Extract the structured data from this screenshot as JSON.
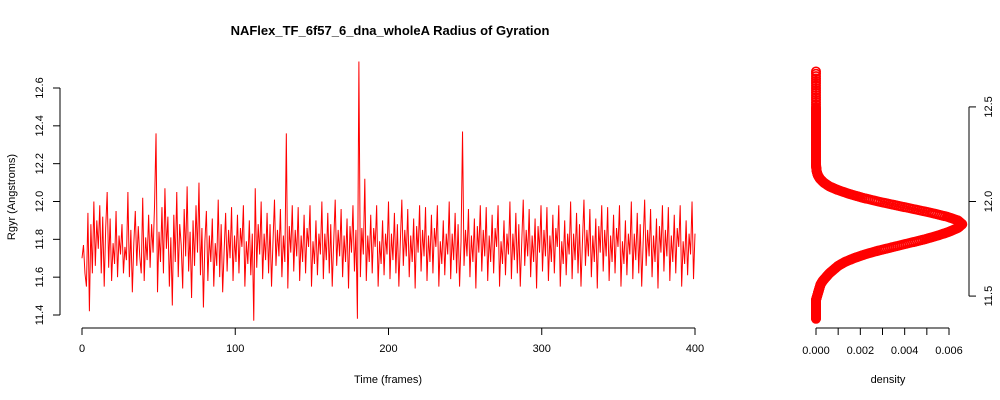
{
  "chart_data": [
    {
      "type": "line",
      "title": "NAFlex_TF_6f57_6_dna_wholeA Radius of Gyration",
      "xlabel": "Time (frames)",
      "ylabel": "Rgyr (Angstroms)",
      "xlim": [
        0,
        400
      ],
      "ylim": [
        11.4,
        12.6
      ],
      "x_ticks": [
        0,
        100,
        200,
        300,
        400
      ],
      "y_ticks": [
        11.4,
        11.6,
        11.8,
        12.0,
        12.2,
        12.4,
        12.6
      ],
      "color": "#ff0000",
      "series": [
        {
          "values": [
            11.7,
            11.77,
            11.62,
            11.55,
            11.94,
            11.42,
            11.88,
            11.62,
            12.0,
            11.66,
            11.9,
            11.75,
            11.98,
            11.62,
            11.92,
            11.55,
            11.86,
            12.05,
            11.65,
            11.91,
            11.58,
            11.78,
            11.67,
            11.95,
            11.6,
            11.82,
            11.72,
            11.88,
            11.62,
            11.76,
            11.69,
            12.05,
            11.6,
            11.85,
            11.52,
            11.78,
            11.95,
            11.66,
            11.87,
            11.71,
            11.62,
            12.02,
            11.58,
            11.81,
            11.69,
            11.93,
            11.65,
            11.88,
            11.73,
            11.98,
            12.36,
            11.52,
            11.84,
            11.68,
            11.97,
            11.62,
            12.07,
            11.75,
            11.92,
            11.55,
            11.81,
            11.45,
            11.93,
            11.68,
            12.05,
            11.6,
            11.88,
            11.77,
            11.54,
            11.96,
            11.71,
            12.08,
            11.63,
            11.84,
            11.49,
            11.9,
            11.66,
            11.98,
            11.73,
            12.1,
            11.61,
            11.86,
            11.44,
            11.79,
            11.95,
            11.58,
            11.82,
            11.68,
            11.91,
            11.55,
            11.78,
            11.66,
            12.01,
            11.6,
            11.88,
            11.52,
            11.74,
            11.94,
            11.63,
            11.85,
            11.7,
            11.97,
            11.58,
            11.82,
            11.68,
            11.93,
            11.62,
            11.86,
            11.76,
            11.98,
            11.55,
            11.79,
            11.67,
            11.9,
            11.61,
            11.83,
            11.37,
            12.07,
            11.65,
            11.88,
            11.72,
            12.0,
            11.59,
            11.83,
            11.69,
            11.94,
            11.62,
            11.88,
            11.55,
            11.79,
            12.01,
            11.66,
            11.85,
            11.71,
            11.96,
            11.6,
            11.82,
            11.68,
            12.36,
            11.54,
            11.87,
            11.73,
            11.98,
            11.63,
            11.85,
            11.71,
            11.97,
            11.58,
            11.82,
            11.68,
            11.93,
            11.62,
            11.86,
            11.76,
            11.98,
            11.55,
            11.79,
            11.67,
            11.9,
            11.61,
            11.83,
            11.72,
            12.0,
            11.59,
            11.83,
            11.69,
            11.94,
            11.62,
            11.88,
            11.55,
            11.79,
            12.01,
            11.66,
            11.85,
            11.71,
            11.96,
            11.6,
            11.82,
            11.68,
            11.91,
            11.54,
            11.87,
            11.73,
            11.98,
            11.63,
            11.85,
            11.38,
            12.74,
            11.6,
            11.86,
            11.72,
            12.12,
            11.58,
            11.82,
            11.68,
            11.93,
            11.62,
            11.86,
            11.76,
            11.98,
            11.55,
            11.79,
            11.67,
            11.9,
            11.61,
            11.83,
            11.72,
            12.0,
            11.59,
            11.83,
            11.69,
            11.94,
            11.62,
            11.88,
            11.55,
            11.79,
            12.01,
            11.66,
            11.85,
            11.71,
            11.96,
            11.6,
            11.82,
            11.68,
            11.91,
            11.54,
            11.87,
            11.73,
            11.98,
            11.63,
            11.85,
            11.71,
            11.97,
            11.58,
            11.82,
            11.68,
            11.93,
            11.62,
            11.86,
            11.76,
            11.98,
            11.55,
            11.79,
            11.67,
            11.9,
            11.61,
            11.83,
            11.72,
            12.0,
            11.59,
            11.83,
            11.69,
            11.94,
            11.62,
            11.88,
            11.55,
            11.79,
            12.37,
            11.66,
            11.85,
            11.71,
            11.96,
            11.6,
            11.82,
            11.68,
            11.91,
            11.54,
            11.87,
            11.73,
            11.98,
            11.63,
            11.85,
            11.71,
            11.97,
            11.58,
            11.82,
            11.68,
            11.93,
            11.62,
            11.86,
            11.76,
            11.98,
            11.55,
            11.79,
            11.67,
            11.9,
            11.61,
            11.83,
            11.72,
            12.0,
            11.59,
            11.83,
            11.69,
            11.94,
            11.62,
            11.88,
            11.55,
            11.79,
            12.01,
            11.66,
            11.85,
            11.71,
            11.96,
            11.6,
            11.82,
            11.68,
            11.91,
            11.54,
            11.87,
            11.73,
            11.98,
            11.63,
            11.85,
            11.71,
            11.97,
            11.58,
            11.82,
            11.68,
            11.93,
            11.62,
            11.86,
            11.76,
            11.98,
            11.55,
            11.79,
            11.67,
            11.9,
            11.61,
            11.83,
            11.72,
            12.0,
            11.59,
            11.83,
            11.69,
            11.94,
            11.62,
            11.88,
            11.55,
            11.79,
            12.01,
            11.66,
            11.85,
            11.71,
            11.96,
            11.6,
            11.82,
            11.68,
            11.91,
            11.54,
            11.87,
            11.73,
            11.98,
            11.63,
            11.85,
            11.71,
            11.97,
            11.58,
            11.82,
            11.68,
            11.93,
            11.62,
            11.86,
            11.76,
            11.98,
            11.55,
            11.79,
            11.67,
            11.9,
            11.61,
            11.83,
            11.72,
            12.0,
            11.59,
            11.83,
            11.69,
            11.94,
            11.62,
            11.88,
            11.55,
            11.79,
            12.01,
            11.66,
            11.85,
            11.71,
            11.96,
            11.6,
            11.82,
            11.68,
            11.91,
            11.54,
            11.87,
            11.73,
            11.98,
            11.63,
            11.85,
            11.71,
            11.97,
            11.58,
            11.82,
            11.68,
            11.93,
            11.62,
            11.86,
            11.76,
            11.98,
            11.55,
            11.79,
            11.67,
            11.9,
            11.61,
            11.83,
            11.72,
            12.0,
            11.59,
            11.83
          ]
        }
      ]
    },
    {
      "type": "line",
      "xlabel": "density",
      "ylabel": "",
      "xlim": [
        0,
        0.006
      ],
      "ylim": [
        11.4,
        12.6
      ],
      "x_ticks": [
        "0.000",
        "0.002",
        "0.004",
        "0.006"
      ],
      "y_ticks": [
        "11.5",
        "12.0",
        "12.5"
      ],
      "orientation": "vertical",
      "color": "#ff0000",
      "series": [
        {
          "density": [
            0.0,
            0.0,
            0.0,
            0.0,
            0.0,
            0.0,
            5e-05,
            0.0001,
            0.00015,
            0.0002,
            0.0003,
            0.00045,
            0.0006,
            0.0008,
            0.001,
            0.0013,
            0.0017,
            0.0022,
            0.0028,
            0.0035,
            0.0042,
            0.0049,
            0.0055,
            0.006,
            0.0064,
            0.0066,
            0.0064,
            0.0059,
            0.0052,
            0.0044,
            0.0036,
            0.0028,
            0.0021,
            0.0015,
            0.001,
            0.0006,
            0.00035,
            0.00018,
            8e-05,
            3e-05,
            1e-05,
            0.0,
            0.0,
            0.0,
            0.0,
            0.0,
            0.0,
            0.0,
            0.0,
            0.0
          ],
          "y": [
            11.38,
            11.4,
            11.42,
            11.44,
            11.46,
            11.48,
            11.5,
            11.52,
            11.54,
            11.56,
            11.58,
            11.6,
            11.62,
            11.64,
            11.66,
            11.68,
            11.7,
            11.72,
            11.74,
            11.76,
            11.78,
            11.8,
            11.82,
            11.84,
            11.86,
            11.88,
            11.9,
            11.92,
            11.94,
            11.96,
            11.98,
            12.0,
            12.02,
            12.04,
            12.06,
            12.08,
            12.1,
            12.12,
            12.14,
            12.16,
            12.18,
            12.2,
            12.25,
            12.3,
            12.35,
            12.4,
            12.45,
            12.5,
            12.6,
            12.7
          ]
        }
      ]
    }
  ]
}
